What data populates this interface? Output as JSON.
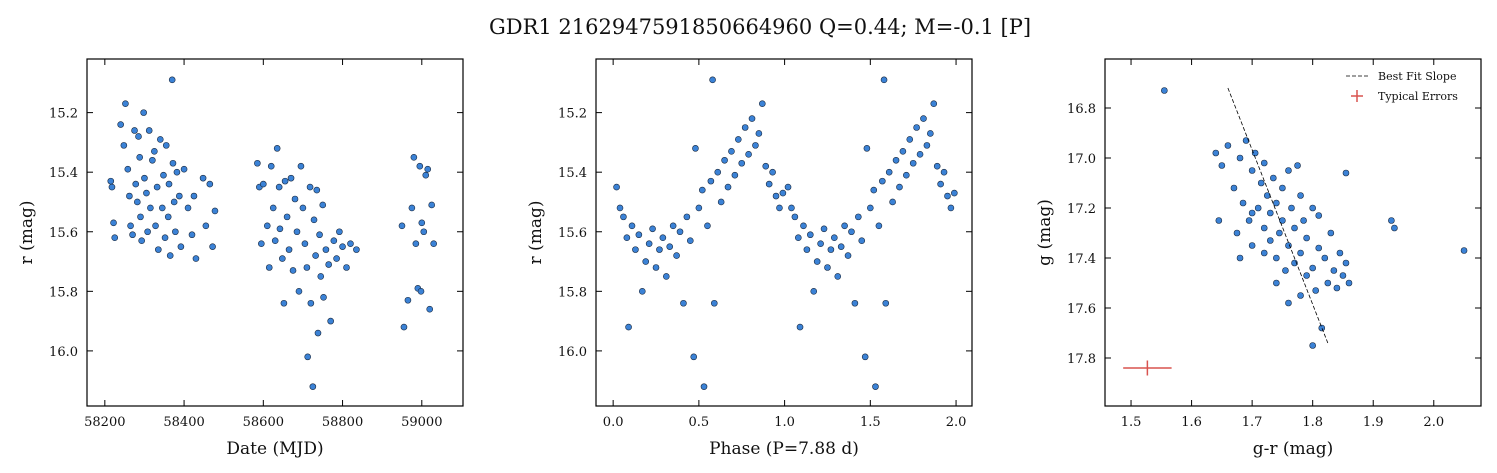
{
  "title": "GDR1 2162947591850664960  Q=0.44; M=-0.1 [P]",
  "chart_data": [
    {
      "type": "scatter",
      "xlabel": "Date (MJD)",
      "ylabel": "r (mag)",
      "xlim": [
        58155,
        59104
      ],
      "ylim": [
        16.185,
        15.02
      ],
      "xticks": [
        58200,
        58400,
        58600,
        58800,
        59000
      ],
      "yticks": [
        15.2,
        15.4,
        15.6,
        15.8,
        {
          "value": 16,
          "label": "16.0"
        }
      ],
      "series": [
        {
          "color": "#3b82d6",
          "x": [
            58215,
            58218,
            58222,
            58225,
            58240,
            58248,
            58252,
            58258,
            58262,
            58265,
            58270,
            58275,
            58278,
            58282,
            58285,
            58288,
            58290,
            58293,
            58298,
            58300,
            58305,
            58308,
            58312,
            58315,
            58320,
            58325,
            58328,
            58332,
            58335,
            58340,
            58345,
            58348,
            58352,
            58355,
            58360,
            58362,
            58365,
            58370,
            58372,
            58375,
            58378,
            58382,
            58388,
            58392,
            58400,
            58410,
            58420,
            58425,
            58430,
            58448,
            58455,
            58465,
            58472,
            58478,
            58585,
            58590,
            58595,
            58600,
            58610,
            58615,
            58620,
            58625,
            58630,
            58635,
            58640,
            58642,
            58648,
            58652,
            58655,
            58660,
            58665,
            58670,
            58675,
            58680,
            58685,
            58690,
            58695,
            58700,
            58705,
            58710,
            58712,
            58718,
            58720,
            58725,
            58728,
            58732,
            58735,
            58738,
            58742,
            58745,
            58750,
            58752,
            58758,
            58765,
            58770,
            58778,
            58785,
            58792,
            58800,
            58810,
            58820,
            58835,
            58950,
            58955,
            58965,
            58975,
            58980,
            58985,
            58990,
            58995,
            58998,
            59000,
            59005,
            59010,
            59015,
            59020,
            59025,
            59030
          ],
          "values": [
            15.43,
            15.45,
            15.57,
            15.62,
            15.24,
            15.31,
            15.17,
            15.39,
            15.48,
            15.58,
            15.61,
            15.26,
            15.44,
            15.5,
            15.28,
            15.35,
            15.55,
            15.63,
            15.2,
            15.42,
            15.47,
            15.6,
            15.26,
            15.52,
            15.36,
            15.33,
            15.58,
            15.45,
            15.66,
            15.29,
            15.52,
            15.41,
            15.62,
            15.31,
            15.55,
            15.44,
            15.68,
            15.09,
            15.37,
            15.5,
            15.6,
            15.4,
            15.48,
            15.65,
            15.39,
            15.52,
            15.61,
            15.48,
            15.69,
            15.42,
            15.58,
            15.44,
            15.65,
            15.53,
            15.37,
            15.45,
            15.64,
            15.44,
            15.58,
            15.72,
            15.38,
            15.52,
            15.63,
            15.32,
            15.45,
            15.59,
            15.69,
            15.84,
            15.43,
            15.55,
            15.66,
            15.42,
            15.73,
            15.49,
            15.6,
            15.8,
            15.38,
            15.52,
            15.64,
            15.72,
            16.02,
            15.45,
            15.84,
            16.12,
            15.56,
            15.68,
            15.46,
            15.94,
            15.61,
            15.75,
            15.51,
            15.82,
            15.66,
            15.71,
            15.9,
            15.63,
            15.69,
            15.6,
            15.65,
            15.72,
            15.64,
            15.66,
            15.58,
            15.92,
            15.83,
            15.52,
            15.35,
            15.64,
            15.79,
            15.38,
            15.8,
            15.57,
            15.6,
            15.41,
            15.39,
            15.86,
            15.51,
            15.64
          ]
        }
      ]
    },
    {
      "type": "scatter",
      "xlabel": "Phase (P=7.88 d)",
      "ylabel": "r (mag)",
      "xlim": [
        -0.1,
        2.093
      ],
      "ylim": [
        16.185,
        15.02
      ],
      "xticks": [
        {
          "value": 0,
          "label": "0.0"
        },
        0.5,
        {
          "value": 1,
          "label": "1.0"
        },
        1.5,
        {
          "value": 2,
          "label": "2.0"
        }
      ],
      "yticks": [
        15.2,
        15.4,
        15.6,
        15.8,
        {
          "value": 16,
          "label": "16.0"
        }
      ],
      "series": [
        {
          "color": "#3b82d6",
          "x": [
            0.02,
            0.04,
            0.06,
            0.08,
            0.09,
            0.11,
            0.13,
            0.15,
            0.17,
            0.19,
            0.21,
            0.23,
            0.25,
            0.27,
            0.29,
            0.31,
            0.33,
            0.35,
            0.37,
            0.39,
            0.41,
            0.43,
            0.45,
            0.47,
            0.48,
            0.5,
            0.52,
            0.53,
            0.55,
            0.57,
            0.58,
            0.59,
            0.61,
            0.63,
            0.65,
            0.67,
            0.69,
            0.71,
            0.73,
            0.75,
            0.77,
            0.79,
            0.81,
            0.83,
            0.85,
            0.87,
            0.89,
            0.91,
            0.93,
            0.95,
            0.97,
            0.99,
            1.02,
            1.04,
            1.06,
            1.08,
            1.09,
            1.11,
            1.13,
            1.15,
            1.17,
            1.19,
            1.21,
            1.23,
            1.25,
            1.27,
            1.29,
            1.31,
            1.33,
            1.35,
            1.37,
            1.39,
            1.41,
            1.43,
            1.45,
            1.47,
            1.48,
            1.5,
            1.52,
            1.53,
            1.55,
            1.57,
            1.58,
            1.59,
            1.61,
            1.63,
            1.65,
            1.67,
            1.69,
            1.71,
            1.73,
            1.75,
            1.77,
            1.79,
            1.81,
            1.83,
            1.85,
            1.87,
            1.89,
            1.91,
            1.93,
            1.95,
            1.97,
            1.99
          ],
          "values": [
            15.45,
            15.52,
            15.55,
            15.62,
            15.92,
            15.58,
            15.66,
            15.61,
            15.8,
            15.7,
            15.64,
            15.59,
            15.72,
            15.66,
            15.62,
            15.75,
            15.65,
            15.58,
            15.68,
            15.6,
            15.84,
            15.55,
            15.63,
            16.02,
            15.32,
            15.52,
            15.46,
            16.12,
            15.58,
            15.43,
            15.09,
            15.84,
            15.4,
            15.5,
            15.36,
            15.45,
            15.33,
            15.41,
            15.29,
            15.37,
            15.25,
            15.34,
            15.22,
            15.31,
            15.27,
            15.17,
            15.38,
            15.44,
            15.4,
            15.48,
            15.52,
            15.47,
            15.45,
            15.52,
            15.55,
            15.62,
            15.92,
            15.58,
            15.66,
            15.61,
            15.8,
            15.7,
            15.64,
            15.59,
            15.72,
            15.66,
            15.62,
            15.75,
            15.65,
            15.58,
            15.68,
            15.6,
            15.84,
            15.55,
            15.63,
            16.02,
            15.32,
            15.52,
            15.46,
            16.12,
            15.58,
            15.43,
            15.09,
            15.84,
            15.4,
            15.5,
            15.36,
            15.45,
            15.33,
            15.41,
            15.29,
            15.37,
            15.25,
            15.34,
            15.22,
            15.31,
            15.27,
            15.17,
            15.38,
            15.44,
            15.4,
            15.48,
            15.52,
            15.47
          ]
        }
      ]
    },
    {
      "type": "scatter",
      "xlabel": "g-r (mag)",
      "ylabel": "g (mag)",
      "xlim": [
        1.457,
        2.078
      ],
      "ylim": [
        17.992,
        16.604
      ],
      "xticks": [
        1.5,
        1.6,
        1.7,
        1.8,
        1.9,
        {
          "value": 2,
          "label": "2.0"
        }
      ],
      "yticks": [
        16.8,
        {
          "value": 17,
          "label": "17.0"
        },
        17.2,
        17.4,
        17.6,
        17.8
      ],
      "legend": "upper right",
      "series": [
        {
          "color": "#3b82d6",
          "x": [
            1.555,
            1.64,
            1.645,
            1.65,
            1.66,
            1.67,
            1.675,
            1.68,
            1.685,
            1.69,
            1.695,
            1.7,
            1.7,
            1.705,
            1.71,
            1.715,
            1.72,
            1.72,
            1.725,
            1.73,
            1.73,
            1.735,
            1.74,
            1.74,
            1.745,
            1.75,
            1.75,
            1.755,
            1.76,
            1.76,
            1.765,
            1.77,
            1.77,
            1.775,
            1.78,
            1.78,
            1.785,
            1.79,
            1.79,
            1.8,
            1.8,
            1.805,
            1.81,
            1.81,
            1.815,
            1.82,
            1.825,
            1.83,
            1.835,
            1.84,
            1.845,
            1.85,
            1.855,
            1.86,
            1.855,
            1.8,
            1.93,
            1.935,
            2.05,
            1.72,
            1.68,
            1.74,
            1.76,
            1.78,
            1.7
          ],
          "values": [
            16.73,
            16.98,
            17.25,
            17.03,
            16.95,
            17.12,
            17.3,
            17.0,
            17.18,
            16.93,
            17.25,
            17.05,
            17.35,
            16.98,
            17.2,
            17.1,
            17.28,
            17.02,
            17.15,
            17.33,
            17.22,
            17.08,
            17.4,
            17.18,
            17.3,
            17.12,
            17.25,
            17.45,
            17.05,
            17.35,
            17.2,
            17.28,
            17.42,
            17.03,
            17.15,
            17.38,
            17.25,
            17.47,
            17.32,
            17.2,
            17.44,
            17.53,
            17.23,
            17.36,
            17.68,
            17.4,
            17.5,
            17.3,
            17.45,
            17.52,
            17.38,
            17.47,
            17.42,
            17.5,
            17.06,
            17.75,
            17.25,
            17.28,
            17.37,
            17.38,
            17.4,
            17.5,
            17.58,
            17.55,
            17.22
          ]
        }
      ],
      "fit": {
        "name": "Best Fit Slope",
        "color": "#000000",
        "x": [
          1.66,
          1.825
        ],
        "values": [
          16.72,
          17.74
        ]
      },
      "errors": {
        "name": "Typical Errors",
        "color": "#d9534f",
        "x": 1.527,
        "value": 17.84,
        "xerr": 0.04,
        "yerr": 0.03
      }
    }
  ]
}
